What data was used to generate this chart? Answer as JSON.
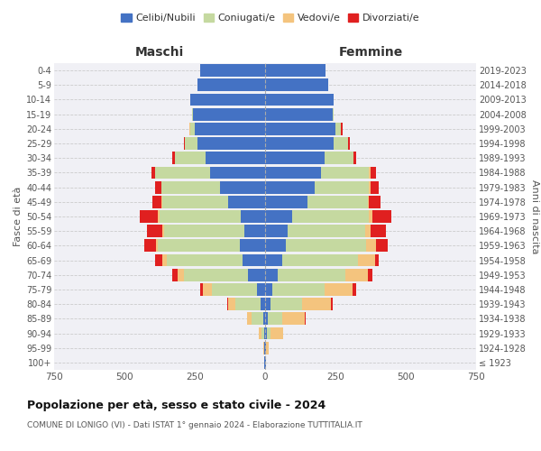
{
  "age_groups": [
    "100+",
    "95-99",
    "90-94",
    "85-89",
    "80-84",
    "75-79",
    "70-74",
    "65-69",
    "60-64",
    "55-59",
    "50-54",
    "45-49",
    "40-44",
    "35-39",
    "30-34",
    "25-29",
    "20-24",
    "15-19",
    "10-14",
    "5-9",
    "0-4"
  ],
  "birth_years": [
    "≤ 1923",
    "1924-1928",
    "1929-1933",
    "1934-1938",
    "1939-1943",
    "1944-1948",
    "1949-1953",
    "1954-1958",
    "1959-1963",
    "1964-1968",
    "1969-1973",
    "1974-1978",
    "1979-1983",
    "1984-1988",
    "1989-1993",
    "1994-1998",
    "1999-2003",
    "2004-2008",
    "2009-2013",
    "2014-2018",
    "2019-2023"
  ],
  "colors": {
    "celibi": "#4472C4",
    "coniugati": "#c5d9a0",
    "vedovi": "#f4c47e",
    "divorziati": "#e02020"
  },
  "males": {
    "celibi": [
      2,
      2,
      3,
      8,
      15,
      30,
      60,
      80,
      90,
      75,
      85,
      130,
      160,
      195,
      210,
      240,
      250,
      255,
      265,
      240,
      230
    ],
    "coniugati": [
      0,
      2,
      10,
      40,
      90,
      160,
      230,
      270,
      290,
      285,
      290,
      235,
      210,
      195,
      110,
      45,
      15,
      5,
      0,
      0,
      0
    ],
    "vedovi": [
      0,
      2,
      8,
      15,
      25,
      30,
      20,
      15,
      8,
      5,
      5,
      5,
      0,
      0,
      0,
      0,
      5,
      0,
      0,
      0,
      0
    ],
    "divorziati": [
      0,
      0,
      0,
      0,
      5,
      10,
      20,
      25,
      40,
      55,
      65,
      30,
      20,
      15,
      10,
      5,
      0,
      0,
      0,
      0,
      0
    ]
  },
  "females": {
    "celibi": [
      2,
      2,
      5,
      10,
      18,
      25,
      45,
      60,
      75,
      80,
      95,
      150,
      175,
      200,
      210,
      245,
      250,
      240,
      245,
      225,
      215
    ],
    "coniugati": [
      0,
      2,
      15,
      50,
      115,
      185,
      240,
      270,
      285,
      275,
      275,
      215,
      195,
      170,
      105,
      50,
      20,
      5,
      0,
      0,
      0
    ],
    "vedovi": [
      2,
      10,
      45,
      80,
      100,
      100,
      80,
      60,
      35,
      20,
      10,
      5,
      5,
      5,
      0,
      0,
      0,
      0,
      0,
      0,
      0
    ],
    "divorziati": [
      0,
      0,
      0,
      5,
      8,
      15,
      15,
      15,
      40,
      55,
      70,
      40,
      30,
      20,
      10,
      5,
      5,
      0,
      0,
      0,
      0
    ]
  },
  "title": "Popolazione per età, sesso e stato civile - 2024",
  "subtitle": "COMUNE DI LONIGO (VI) - Dati ISTAT 1° gennaio 2024 - Elaborazione TUTTITALIA.IT",
  "xlabel_left": "Maschi",
  "xlabel_right": "Femmine",
  "ylabel_left": "Fasce di età",
  "ylabel_right": "Anni di nascita",
  "xlim": 750,
  "legend_labels": [
    "Celibi/Nubili",
    "Coniugati/e",
    "Vedovi/e",
    "Divorziati/e"
  ],
  "background_color": "#ffffff"
}
